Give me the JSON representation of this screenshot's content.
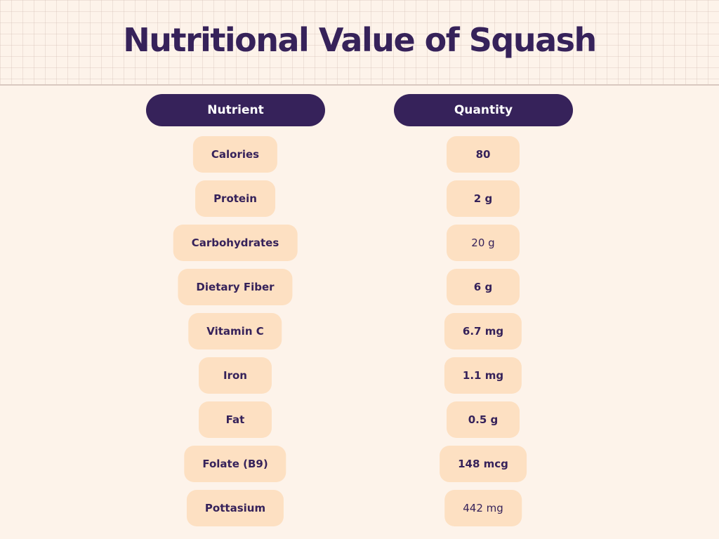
{
  "title": "Nutritional Value of Squash",
  "columns": {
    "nutrient": "Nutrient",
    "quantity": "Quantity"
  },
  "rows": [
    {
      "nutrient": "Calories",
      "quantity": "80"
    },
    {
      "nutrient": "Protein",
      "quantity": "2 g"
    },
    {
      "nutrient": "Carbohydrates",
      "quantity": "20 g"
    },
    {
      "nutrient": "Dietary Fiber",
      "quantity": "6 g"
    },
    {
      "nutrient": "Vitamin C",
      "quantity": "6.7 mg"
    },
    {
      "nutrient": "Iron",
      "quantity": "1.1 mg"
    },
    {
      "nutrient": "Fat",
      "quantity": "0.5 g"
    },
    {
      "nutrient": "Folate (B9)",
      "quantity": "148 mcg"
    },
    {
      "nutrient": "Pottasium",
      "quantity": "442 mg"
    }
  ],
  "colors": {
    "background": "#fdf3ea",
    "header_pill": "#36225a",
    "cell_pill": "#fde0c2",
    "text": "#36225a"
  }
}
